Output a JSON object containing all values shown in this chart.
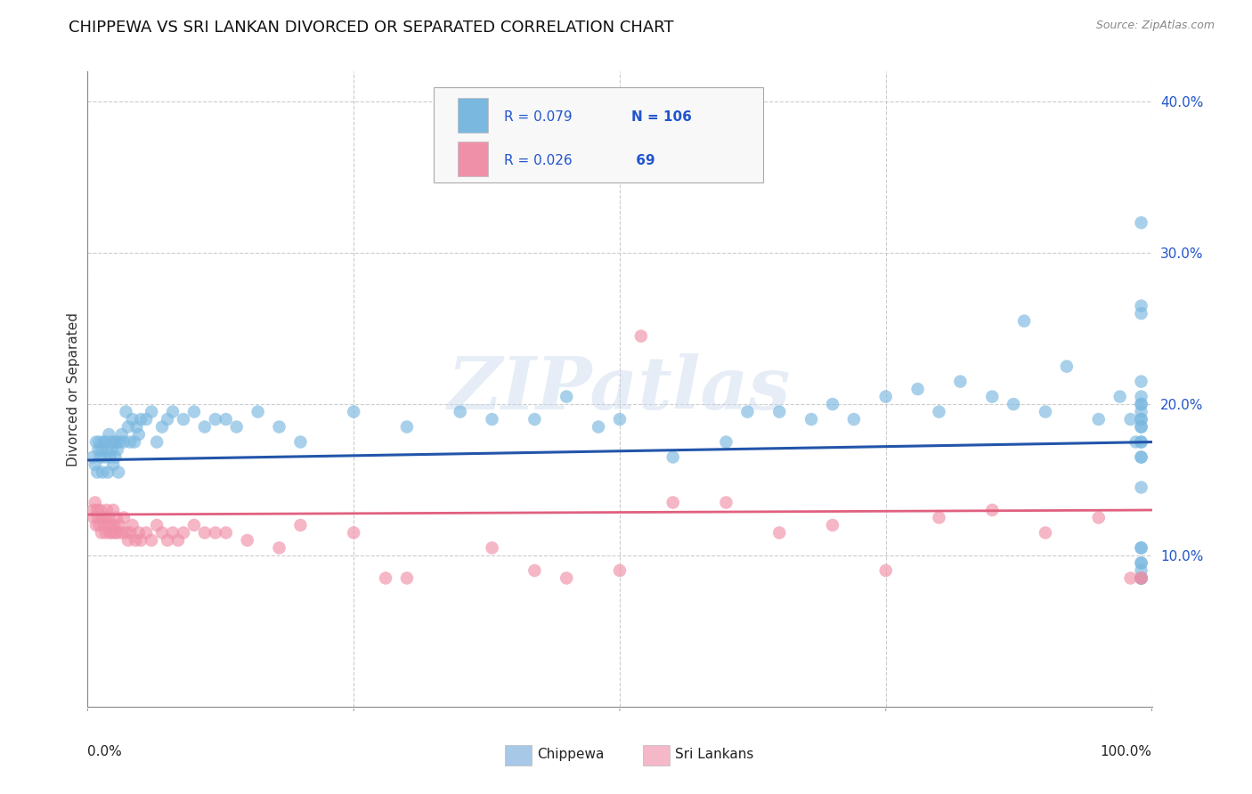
{
  "title": "CHIPPEWA VS SRI LANKAN DIVORCED OR SEPARATED CORRELATION CHART",
  "source": "Source: ZipAtlas.com",
  "ylabel": "Divorced or Separated",
  "legend_R1": "R = 0.079",
  "legend_N1": "N = 106",
  "legend_R2": "R = 0.026",
  "legend_N2": " 69",
  "bottom_legend": [
    "Chippewa",
    "Sri Lankans"
  ],
  "bottom_legend_colors": [
    "#a8c8e8",
    "#f4b8c8"
  ],
  "chippewa_color": "#7ab8e0",
  "srilanka_color": "#f090a8",
  "chippewa_line_color": "#2255aa",
  "srilanka_line_color": "#e06080",
  "blue_text_color": "#2255cc",
  "xlim": [
    0.0,
    1.0
  ],
  "ylim": [
    -0.02,
    0.44
  ],
  "plot_ylim": [
    0.0,
    0.42
  ],
  "yticks": [
    0.1,
    0.2,
    0.3,
    0.4
  ],
  "ytick_labels": [
    "10.0%",
    "20.0%",
    "30.0%",
    "40.0%"
  ],
  "xtick_positions": [
    0.0,
    0.25,
    0.5,
    0.75,
    1.0
  ],
  "background_color": "#ffffff",
  "grid_color": "#cccccc",
  "watermark": "ZIPatlas",
  "chip_trend_y0": 0.163,
  "chip_trend_y1": 0.175,
  "sri_trend_y0": 0.127,
  "sri_trend_y1": 0.13,
  "chippewa_x": [
    0.005,
    0.007,
    0.008,
    0.009,
    0.01,
    0.011,
    0.012,
    0.013,
    0.014,
    0.015,
    0.016,
    0.017,
    0.018,
    0.019,
    0.02,
    0.021,
    0.022,
    0.023,
    0.024,
    0.025,
    0.026,
    0.027,
    0.028,
    0.029,
    0.03,
    0.032,
    0.034,
    0.036,
    0.038,
    0.04,
    0.042,
    0.044,
    0.046,
    0.048,
    0.05,
    0.055,
    0.06,
    0.065,
    0.07,
    0.075,
    0.08,
    0.09,
    0.1,
    0.11,
    0.12,
    0.13,
    0.14,
    0.16,
    0.18,
    0.2,
    0.25,
    0.3,
    0.35,
    0.38,
    0.42,
    0.45,
    0.48,
    0.5,
    0.55,
    0.6,
    0.62,
    0.65,
    0.68,
    0.7,
    0.72,
    0.75,
    0.78,
    0.8,
    0.82,
    0.85,
    0.87,
    0.88,
    0.9,
    0.92,
    0.95,
    0.97,
    0.98,
    0.985,
    0.99,
    0.99,
    0.99,
    0.99,
    0.99,
    0.99,
    0.99,
    0.99,
    0.99,
    0.99,
    0.99,
    0.99,
    0.99,
    0.99,
    0.99,
    0.99,
    0.99,
    0.99,
    0.99,
    0.99,
    0.99,
    0.99,
    0.99,
    0.99,
    0.99,
    0.99,
    0.99,
    0.99
  ],
  "chippewa_y": [
    0.165,
    0.16,
    0.175,
    0.155,
    0.17,
    0.175,
    0.165,
    0.17,
    0.155,
    0.175,
    0.165,
    0.175,
    0.17,
    0.155,
    0.18,
    0.165,
    0.175,
    0.17,
    0.16,
    0.175,
    0.165,
    0.175,
    0.17,
    0.155,
    0.175,
    0.18,
    0.175,
    0.195,
    0.185,
    0.175,
    0.19,
    0.175,
    0.185,
    0.18,
    0.19,
    0.19,
    0.195,
    0.175,
    0.185,
    0.19,
    0.195,
    0.19,
    0.195,
    0.185,
    0.19,
    0.19,
    0.185,
    0.195,
    0.185,
    0.175,
    0.195,
    0.185,
    0.195,
    0.19,
    0.19,
    0.205,
    0.185,
    0.19,
    0.165,
    0.175,
    0.195,
    0.195,
    0.19,
    0.2,
    0.19,
    0.205,
    0.21,
    0.195,
    0.215,
    0.205,
    0.2,
    0.255,
    0.195,
    0.225,
    0.19,
    0.205,
    0.19,
    0.175,
    0.32,
    0.09,
    0.085,
    0.265,
    0.26,
    0.145,
    0.175,
    0.195,
    0.165,
    0.105,
    0.085,
    0.2,
    0.19,
    0.205,
    0.19,
    0.185,
    0.175,
    0.165,
    0.105,
    0.085,
    0.095,
    0.215,
    0.2,
    0.185,
    0.095,
    0.085,
    0.085,
    0.085
  ],
  "srilanka_x": [
    0.005,
    0.006,
    0.007,
    0.008,
    0.009,
    0.01,
    0.011,
    0.012,
    0.013,
    0.014,
    0.015,
    0.016,
    0.017,
    0.018,
    0.019,
    0.02,
    0.021,
    0.022,
    0.023,
    0.024,
    0.025,
    0.026,
    0.027,
    0.028,
    0.03,
    0.032,
    0.034,
    0.036,
    0.038,
    0.04,
    0.042,
    0.045,
    0.048,
    0.05,
    0.055,
    0.06,
    0.065,
    0.07,
    0.075,
    0.08,
    0.085,
    0.09,
    0.1,
    0.11,
    0.12,
    0.13,
    0.15,
    0.18,
    0.2,
    0.25,
    0.28,
    0.3,
    0.38,
    0.42,
    0.45,
    0.5,
    0.52,
    0.55,
    0.6,
    0.65,
    0.7,
    0.75,
    0.8,
    0.85,
    0.9,
    0.95,
    0.98,
    0.99,
    0.99
  ],
  "srilanka_y": [
    0.13,
    0.125,
    0.135,
    0.12,
    0.13,
    0.125,
    0.12,
    0.13,
    0.115,
    0.125,
    0.12,
    0.125,
    0.115,
    0.13,
    0.12,
    0.125,
    0.115,
    0.12,
    0.115,
    0.13,
    0.12,
    0.115,
    0.125,
    0.115,
    0.12,
    0.115,
    0.125,
    0.115,
    0.11,
    0.115,
    0.12,
    0.11,
    0.115,
    0.11,
    0.115,
    0.11,
    0.12,
    0.115,
    0.11,
    0.115,
    0.11,
    0.115,
    0.12,
    0.115,
    0.115,
    0.115,
    0.11,
    0.105,
    0.12,
    0.115,
    0.085,
    0.085,
    0.105,
    0.09,
    0.085,
    0.09,
    0.245,
    0.135,
    0.135,
    0.115,
    0.12,
    0.09,
    0.125,
    0.13,
    0.115,
    0.125,
    0.085,
    0.085,
    0.085
  ]
}
